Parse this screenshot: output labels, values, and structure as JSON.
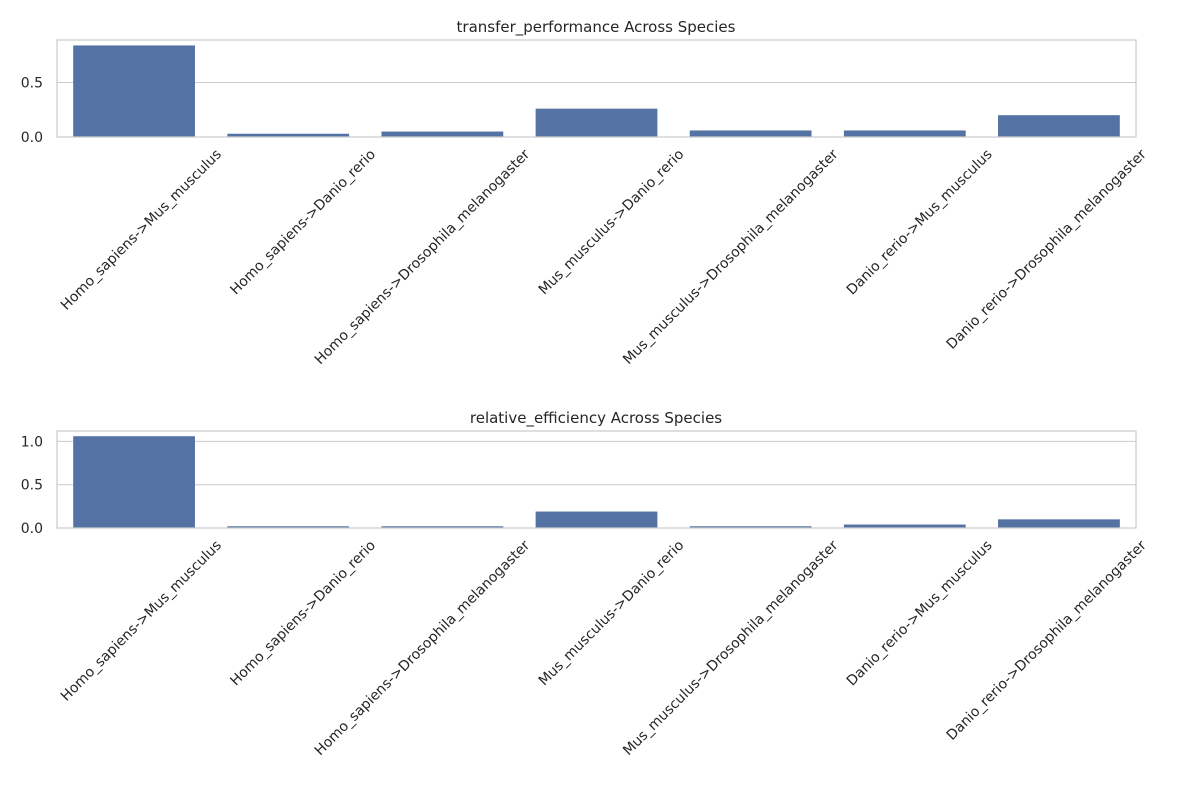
{
  "chart_data": [
    {
      "type": "bar",
      "title": "transfer_performance Across Species",
      "xlabel": "",
      "ylabel": "",
      "categories": [
        "Homo_sapiens->Mus_musculus",
        "Homo_sapiens->Danio_rerio",
        "Homo_sapiens->Drosophila_melanogaster",
        "Mus_musculus->Danio_rerio",
        "Mus_musculus->Drosophila_melanogaster",
        "Danio_rerio->Mus_musculus",
        "Danio_rerio->Drosophila_melanogaster"
      ],
      "values": [
        0.84,
        0.03,
        0.05,
        0.26,
        0.06,
        0.06,
        0.2
      ],
      "ylim": [
        0,
        0.89
      ],
      "yticks": [
        0.0,
        0.5
      ],
      "ytick_labels": [
        "0.0",
        "0.5"
      ],
      "grid": "horizontal",
      "bar_color": "#5572a4"
    },
    {
      "type": "bar",
      "title": "relative_efficiency Across Species",
      "xlabel": "",
      "ylabel": "",
      "categories": [
        "Homo_sapiens->Mus_musculus",
        "Homo_sapiens->Danio_rerio",
        "Homo_sapiens->Drosophila_melanogaster",
        "Mus_musculus->Danio_rerio",
        "Mus_musculus->Drosophila_melanogaster",
        "Danio_rerio->Mus_musculus",
        "Danio_rerio->Drosophila_melanogaster"
      ],
      "values": [
        1.06,
        0.02,
        0.02,
        0.19,
        0.02,
        0.04,
        0.1
      ],
      "ylim": [
        0,
        1.12
      ],
      "yticks": [
        0.0,
        0.5,
        1.0
      ],
      "ytick_labels": [
        "0.0",
        "0.5",
        "1.0"
      ],
      "grid": "horizontal",
      "bar_color": "#5572a4"
    }
  ]
}
